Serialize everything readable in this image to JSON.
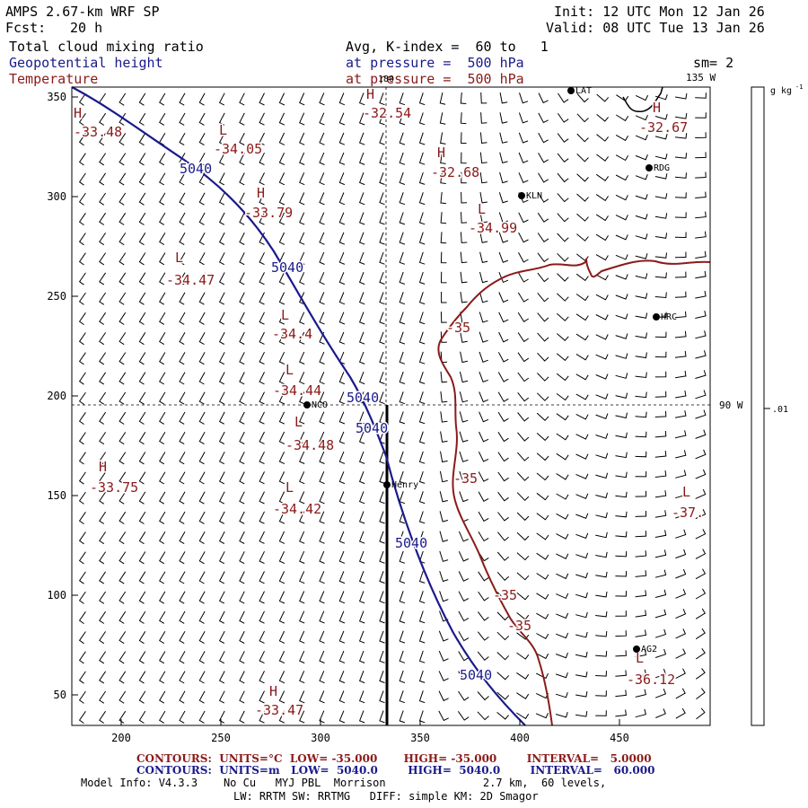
{
  "header": {
    "model": "AMPS 2.67-km WRF SP",
    "forecast_label": "Fcst:",
    "forecast_value": "20 h",
    "init": "Init: 12 UTC Mon 12 Jan 26",
    "valid": "Valid: 08 UTC Tue 13 Jan 26",
    "field1": "Total cloud mixing ratio",
    "field1_info": "Avg, K-index =  60 to   1",
    "field2": "Geopotential height",
    "field2_info": "at pressure =  500 hPa",
    "field3": "Temperature",
    "field3_info": "at pressure =  500 hPa",
    "smoothing": "sm= 2"
  },
  "colors": {
    "height": "#1a1a8c",
    "temperature": "#8b1a1a",
    "text": "#000000"
  },
  "map": {
    "x_ticks": [
      "200",
      "250",
      "300",
      "350",
      "400",
      "450"
    ],
    "y_ticks": [
      "350",
      "300",
      "250",
      "200",
      "150",
      "100",
      "50"
    ],
    "meridian_labels": [
      "180",
      "135 W",
      "90 W"
    ],
    "height_labels": [
      "5040",
      "5040",
      "5040",
      "5040",
      "5040"
    ],
    "temp_contour_labels": [
      "-35",
      "-35",
      "-35",
      "-35"
    ],
    "highs_lows": [
      {
        "type": "H",
        "value": "-33.48"
      },
      {
        "type": "L",
        "value": "-34.05"
      },
      {
        "type": "H",
        "value": "-32.54"
      },
      {
        "type": "H",
        "value": "-32.67"
      },
      {
        "type": "H",
        "value": "-33.79"
      },
      {
        "type": "H",
        "value": "-32.68"
      },
      {
        "type": "L",
        "value": "-34.99"
      },
      {
        "type": "L",
        "value": "-34.47"
      },
      {
        "type": "L",
        "value": "-34.4"
      },
      {
        "type": "L",
        "value": "-34.44"
      },
      {
        "type": "L",
        "value": "-34.48"
      },
      {
        "type": "H",
        "value": "-33.75"
      },
      {
        "type": "L",
        "value": "-34.42"
      },
      {
        "type": "L",
        "value": "-37."
      },
      {
        "type": "L",
        "value": "-36.12"
      },
      {
        "type": "H",
        "value": "-33.47"
      }
    ],
    "stations": [
      "LAT",
      "RDG",
      "KLN",
      "HRC",
      "NCO",
      "Henry",
      "AG2"
    ]
  },
  "colorbar": {
    "unit": "g kg",
    "unit_exp": "-1",
    "tick": ".01"
  },
  "footer": {
    "temp_contours": "CONTOURS:  UNITS=°C  LOW= -35.000       HIGH= -35.000        INTERVAL=   5.0000",
    "height_contours": "CONTOURS:  UNITS=m   LOW=  5040.0        HIGH=  5040.0        INTERVAL=   60.000",
    "model_info": "Model Info: V4.3.3    No Cu   MYJ PBL  Morrison               2.7 km,  60 levels,",
    "physics": "LW: RRTM SW: RRTMG   DIFF: simple KM: 2D Smagor"
  }
}
